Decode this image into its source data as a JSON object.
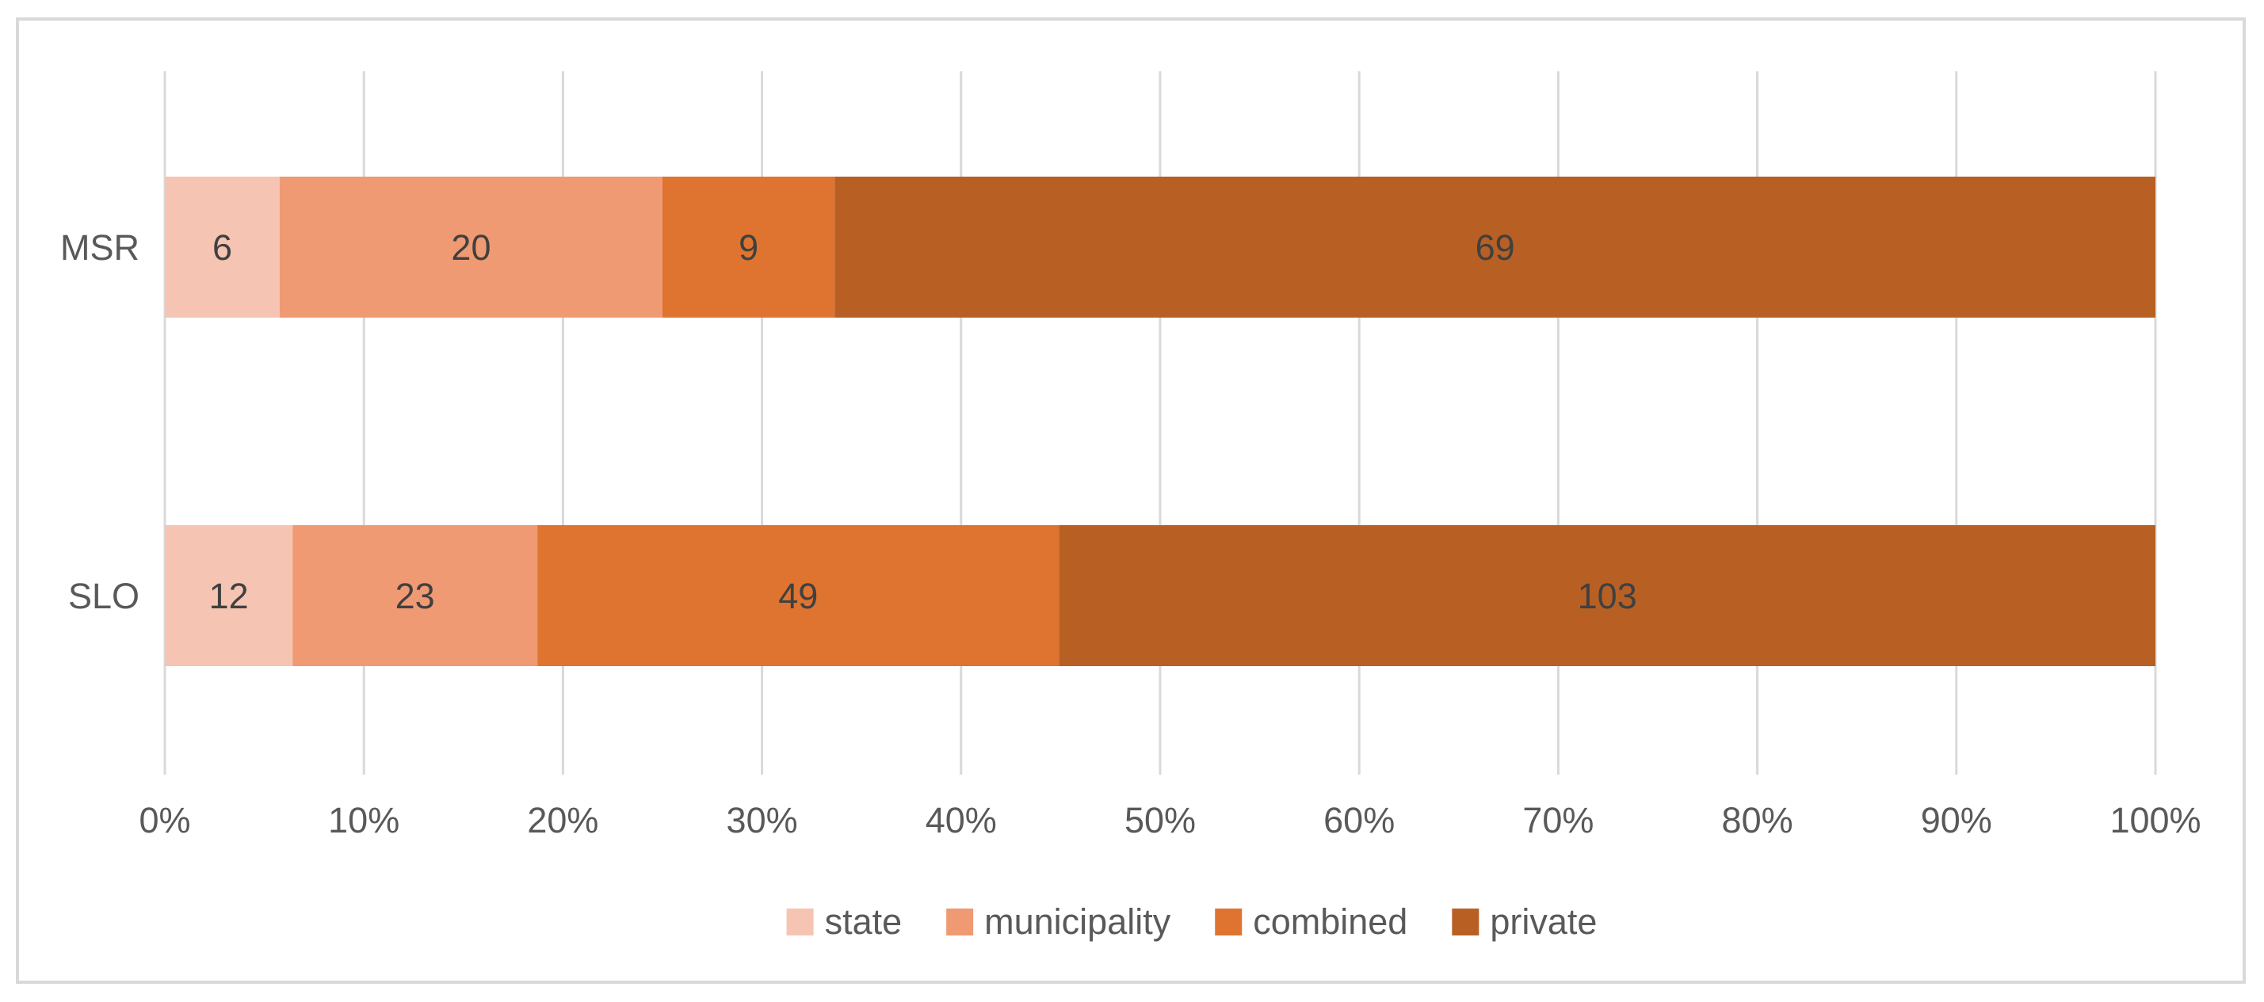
{
  "chart_data": {
    "type": "bar",
    "orientation": "horizontal",
    "stacked": "percent",
    "title": "",
    "xlabel": "",
    "ylabel": "",
    "categories": [
      "MSR",
      "SLO"
    ],
    "series": [
      {
        "name": "state",
        "color": "#f6c4b3",
        "values": [
          6,
          12
        ]
      },
      {
        "name": "municipality",
        "color": "#f09a73",
        "values": [
          20,
          23
        ]
      },
      {
        "name": "combined",
        "color": "#de7430",
        "values": [
          9,
          49
        ]
      },
      {
        "name": "private",
        "color": "#b86024",
        "values": [
          69,
          103
        ]
      }
    ],
    "xlim": [
      0,
      100
    ],
    "x_ticks": [
      "0%",
      "10%",
      "20%",
      "30%",
      "40%",
      "50%",
      "60%",
      "70%",
      "80%",
      "90%",
      "100%"
    ],
    "grid": "vertical",
    "legend": "bottom",
    "data_labels": true
  }
}
